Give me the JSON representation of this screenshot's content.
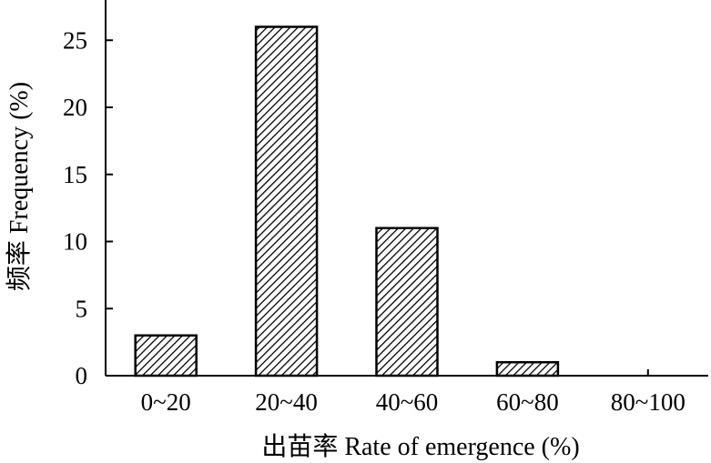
{
  "chart_data": {
    "type": "bar",
    "categories": [
      "0~20",
      "20~40",
      "40~60",
      "60~80",
      "80~100"
    ],
    "values": [
      3,
      26,
      11,
      1,
      0
    ],
    "xlabel": "出苗率 Rate of emergence (%)",
    "ylabel": "频率 Frequency (%)",
    "ylim": [
      0,
      28
    ],
    "yticks": [
      "0",
      "5",
      "10",
      "15",
      "20",
      "25"
    ],
    "grid": false,
    "legend": "none",
    "bar_fill": "hatched",
    "colors": {
      "axis": "#000000",
      "bar_stroke": "#000000",
      "hatch": "#000000",
      "background": "#ffffff"
    }
  }
}
